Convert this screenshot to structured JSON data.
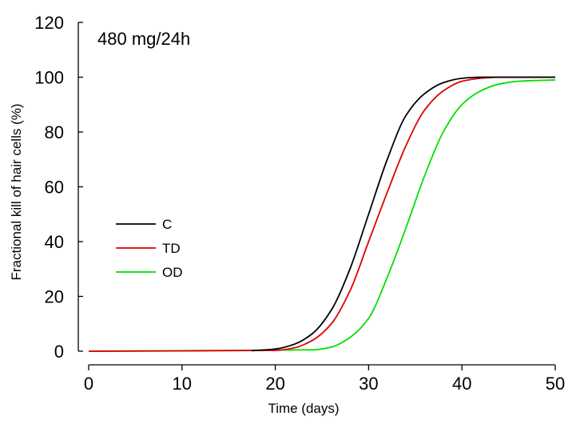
{
  "chart_data": {
    "type": "line",
    "annotation": "480 mg/24h",
    "xlabel": "Time (days)",
    "ylabel": "Fractional kill of hair cells (%)",
    "xlim": [
      0,
      50
    ],
    "ylim": [
      0,
      120
    ],
    "xticks": [
      0,
      10,
      20,
      30,
      40,
      50
    ],
    "yticks": [
      0,
      20,
      40,
      60,
      80,
      100,
      120
    ],
    "grid": false,
    "legend_position": "left",
    "series": [
      {
        "name": "C",
        "color": "#000000",
        "x": [
          17.5,
          20,
          22,
          24,
          26,
          28,
          30,
          32,
          34,
          36,
          38,
          40,
          42,
          44,
          46,
          48,
          50
        ],
        "y": [
          0.2,
          0.8,
          2.5,
          6.5,
          15,
          30,
          50,
          70,
          86,
          94,
          98,
          99.6,
          100,
          100,
          100,
          100,
          100
        ]
      },
      {
        "name": "TD",
        "color": "#e00000",
        "x": [
          0,
          20,
          22,
          24,
          26,
          28,
          30,
          32,
          34,
          36,
          38,
          40,
          42,
          44,
          46,
          48,
          50
        ],
        "y": [
          0,
          0.3,
          1.2,
          4,
          10,
          22,
          40,
          58,
          75,
          88,
          95,
          98.5,
          99.6,
          100,
          100,
          100,
          100
        ]
      },
      {
        "name": "OD",
        "color": "#00e000",
        "x": [
          0,
          24,
          26,
          28,
          30,
          32,
          34,
          36,
          38,
          40,
          42,
          44,
          46,
          48,
          50
        ],
        "y": [
          0,
          0.5,
          1.5,
          5,
          12,
          27,
          45,
          64,
          80,
          90,
          95,
          97.5,
          98.5,
          98.8,
          99
        ]
      }
    ]
  }
}
